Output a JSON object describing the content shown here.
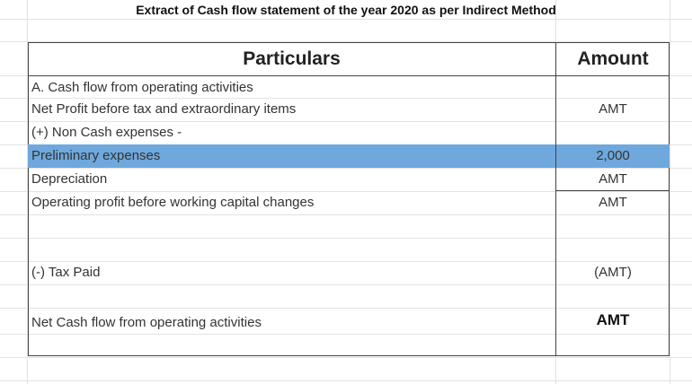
{
  "title": "Extract of Cash flow statement of the year 2020 as per Indirect Method",
  "columns": {
    "particulars": "Particulars",
    "amount": "Amount"
  },
  "rows": [
    {
      "label": "A. Cash flow from operating activities",
      "amount": ""
    },
    {
      "label": "Net Profit before tax and extraordinary items",
      "amount": "AMT"
    },
    {
      "label": "(+) Non Cash expenses -",
      "amount": ""
    },
    {
      "label": "Preliminary expenses",
      "amount": "2,000",
      "highlighted": true
    },
    {
      "label": "Depreciation",
      "amount": "AMT"
    },
    {
      "label": "Operating profit before working capital changes",
      "amount": "AMT"
    },
    {
      "label": "(-) Tax Paid",
      "amount": "(AMT)"
    },
    {
      "label": "Net Cash flow from operating activities",
      "amount": "AMT"
    }
  ],
  "colors": {
    "highlight": "#6fa8dc",
    "gridline": "#e2e2e2",
    "border": "#444444"
  }
}
